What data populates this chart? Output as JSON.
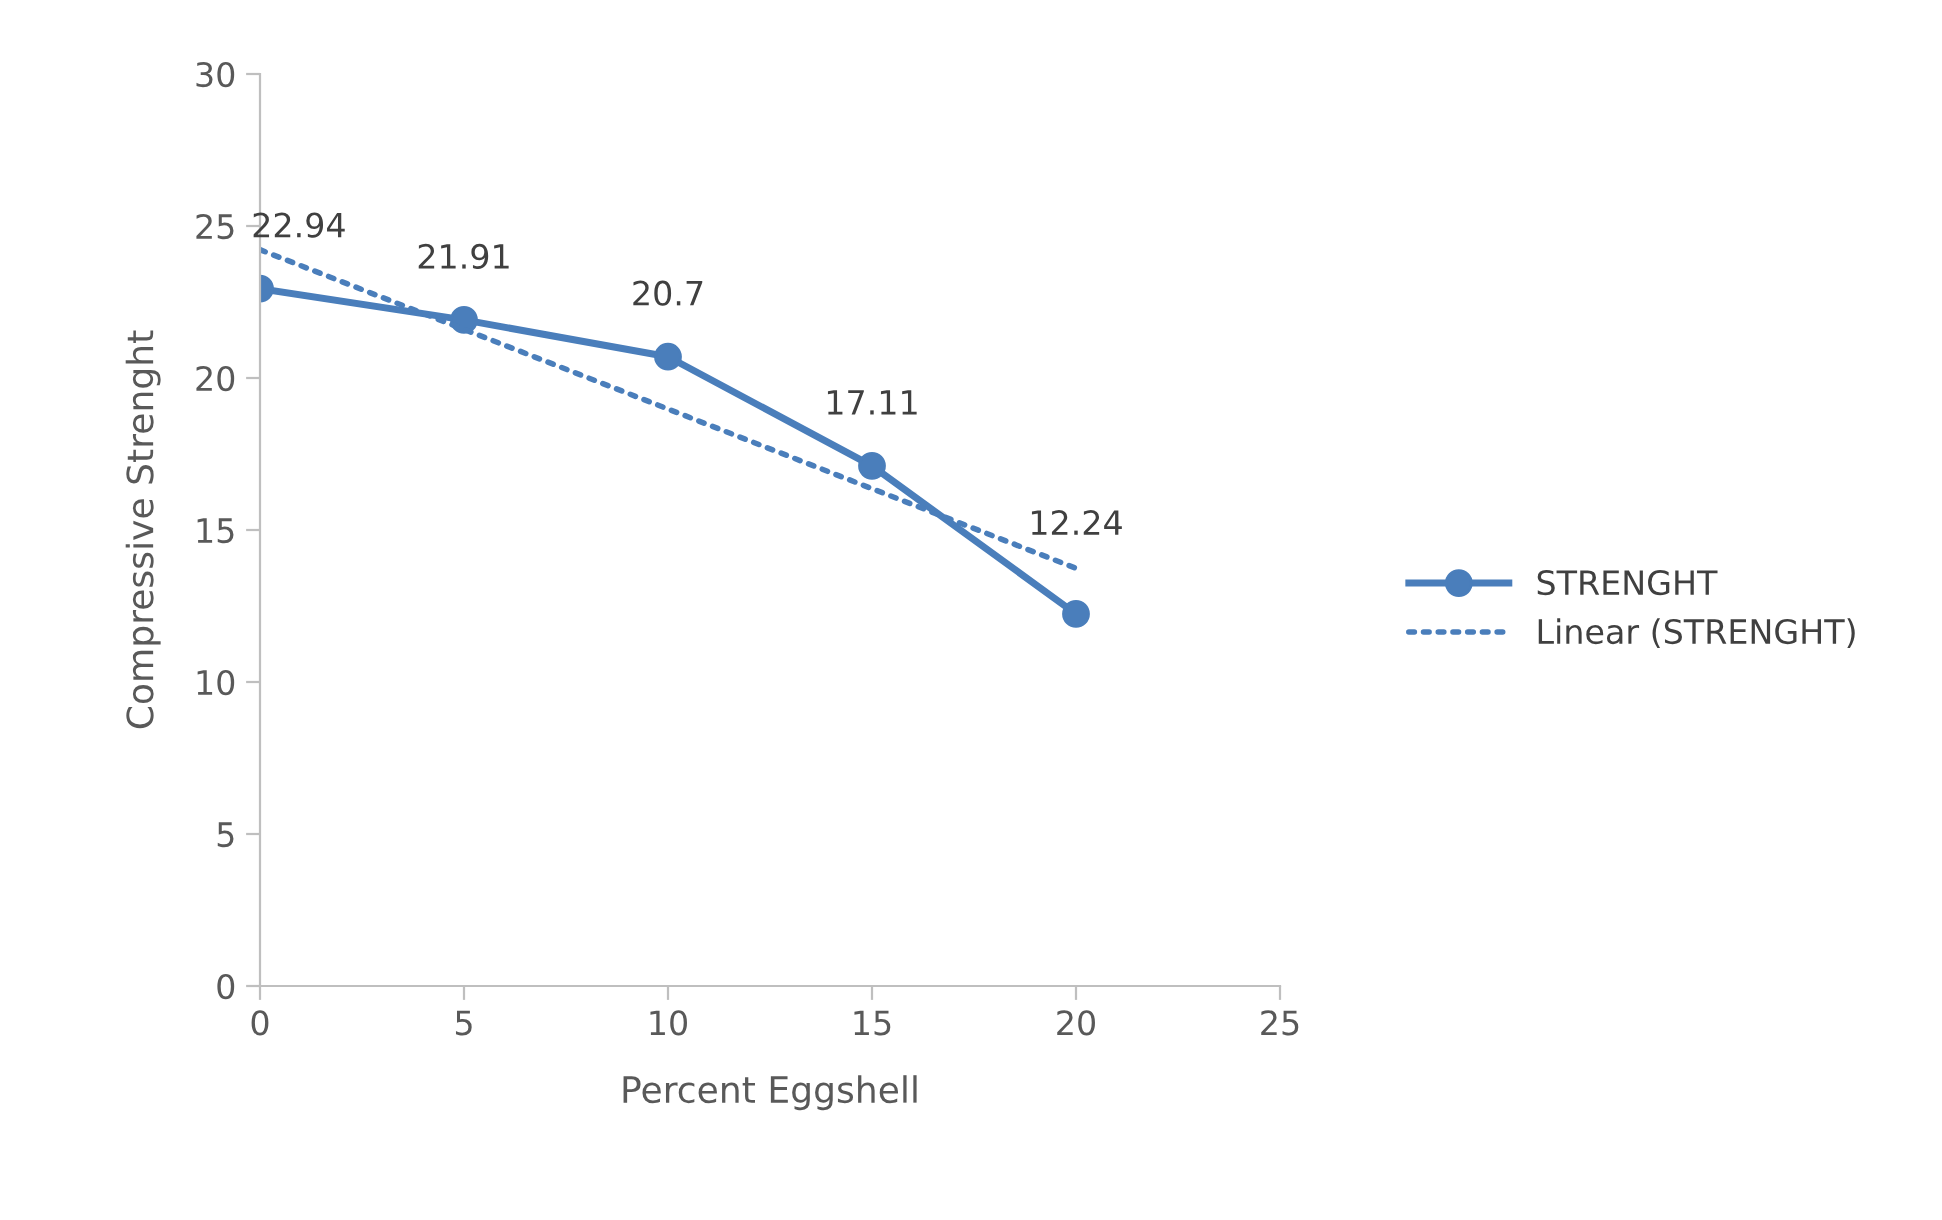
{
  "chart_data": {
    "type": "line",
    "xlabel": "Percent Eggshell",
    "ylabel": "Compressive Strenght",
    "x": [
      0,
      5,
      10,
      15,
      20
    ],
    "series": [
      {
        "name": "STRENGHT",
        "color": "#4a7ebb",
        "values": [
          22.94,
          21.91,
          20.7,
          17.11,
          12.24
        ],
        "marker": "circle",
        "line_style": "solid",
        "value_labels": [
          "22.94",
          "21.91",
          "20.7",
          "17.11",
          "12.24"
        ]
      },
      {
        "name": "Linear (STRENGHT)",
        "type": "line",
        "color": "#4a7ebb",
        "x": [
          0,
          20
        ],
        "values": [
          24.22,
          13.74
        ],
        "marker": "none",
        "line_style": "dotted"
      }
    ],
    "xlim": [
      0,
      25
    ],
    "xticks": [
      0,
      5,
      10,
      15,
      20,
      25
    ],
    "ylim": [
      0,
      30
    ],
    "yticks": [
      0,
      5,
      10,
      15,
      20,
      25,
      30
    ],
    "grid": false,
    "legend": "right"
  }
}
